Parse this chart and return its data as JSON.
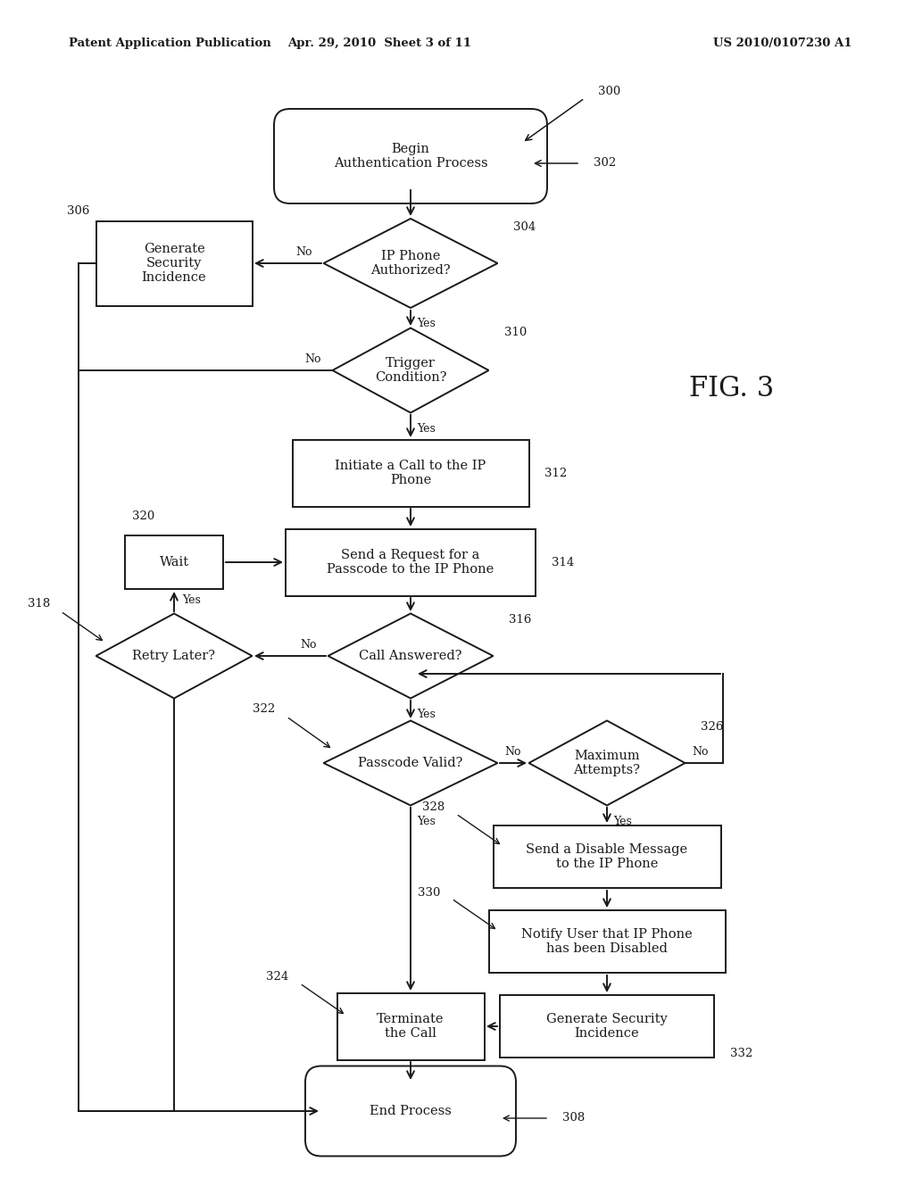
{
  "header_left": "Patent Application Publication",
  "header_mid": "Apr. 29, 2010  Sheet 3 of 11",
  "header_right": "US 2010/0107230 A1",
  "fig_label": "FIG. 3",
  "background_color": "#ffffff",
  "line_color": "#1a1a1a",
  "text_color": "#1a1a1a",
  "nodes": {
    "begin": {
      "label": "Begin\nAuthentication Process",
      "ref": "302"
    },
    "ip_auth": {
      "label": "IP Phone\nAuthorized?",
      "ref": "304"
    },
    "gen_sec1": {
      "label": "Generate\nSecurity\nIncidence",
      "ref": "306"
    },
    "trigger": {
      "label": "Trigger\nCondition?",
      "ref": "310"
    },
    "initiate": {
      "label": "Initiate a Call to the IP\nPhone",
      "ref": "312"
    },
    "send_req": {
      "label": "Send a Request for a\nPasscode to the IP Phone",
      "ref": "314"
    },
    "wait": {
      "label": "Wait",
      "ref": "320"
    },
    "call_ans": {
      "label": "Call Answered?",
      "ref": "316"
    },
    "retry": {
      "label": "Retry Later?",
      "ref": "318"
    },
    "passcode": {
      "label": "Passcode Valid?",
      "ref": "322"
    },
    "max_att": {
      "label": "Maximum\nAttempts?",
      "ref": "326"
    },
    "disable": {
      "label": "Send a Disable Message\nto the IP Phone",
      "ref": "328"
    },
    "notify": {
      "label": "Notify User that IP Phone\nhas been Disabled",
      "ref": "330"
    },
    "gen_sec2": {
      "label": "Generate Security\nIncidence",
      "ref": "332"
    },
    "terminate": {
      "label": "Terminate\nthe Call",
      "ref": "324"
    },
    "end": {
      "label": "End Process",
      "ref": "308"
    }
  }
}
